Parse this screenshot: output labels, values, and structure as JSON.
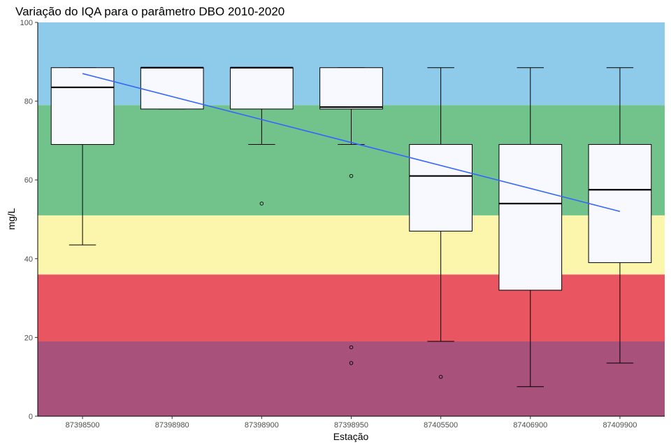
{
  "chart_data": {
    "type": "boxplot",
    "title": "Variação do IQA para o parâmetro DBO 2010-2020",
    "xlabel": "Estação",
    "ylabel": "mg/L",
    "ylim": [
      0,
      100
    ],
    "yticks": [
      0,
      20,
      40,
      60,
      80,
      100
    ],
    "categories": [
      "87398500",
      "87398980",
      "87398900",
      "87398950",
      "87405500",
      "87406900",
      "87409900"
    ],
    "bands": [
      {
        "from": 0,
        "to": 19,
        "color": "#a8517a"
      },
      {
        "from": 19,
        "to": 36,
        "color": "#e95661"
      },
      {
        "from": 36,
        "to": 51,
        "color": "#fcf5ac"
      },
      {
        "from": 51,
        "to": 79,
        "color": "#72c28b"
      },
      {
        "from": 79,
        "to": 100,
        "color": "#8ecae9"
      }
    ],
    "boxes": [
      {
        "whisker_low": 43.5,
        "q1": 69,
        "median": 83.5,
        "q3": 88.5,
        "whisker_high": 88.5,
        "outliers": []
      },
      {
        "whisker_low": 78,
        "q1": 78,
        "median": 88.5,
        "q3": 88.5,
        "whisker_high": 88.5,
        "outliers": []
      },
      {
        "whisker_low": 69,
        "q1": 78,
        "median": 88.5,
        "q3": 88.5,
        "whisker_high": 88.5,
        "outliers": [
          54
        ]
      },
      {
        "whisker_low": 69,
        "q1": 78,
        "median": 78.5,
        "q3": 88.5,
        "whisker_high": 88.5,
        "outliers": [
          61,
          17.5,
          13.5
        ]
      },
      {
        "whisker_low": 19,
        "q1": 47,
        "median": 61,
        "q3": 69,
        "whisker_high": 88.5,
        "outliers": [
          10
        ]
      },
      {
        "whisker_low": 7.5,
        "q1": 32,
        "median": 54,
        "q3": 69,
        "whisker_high": 88.5,
        "outliers": []
      },
      {
        "whisker_low": 13.5,
        "q1": 39,
        "median": 57.5,
        "q3": 69,
        "whisker_high": 88.5,
        "outliers": []
      }
    ],
    "trend_line": {
      "x_start": "87398500",
      "y_start": 87,
      "x_end": "87409900",
      "y_end": 52,
      "color": "#3366ff"
    },
    "box_fill": "#f8f8ff",
    "grid": false,
    "legend": "none"
  }
}
